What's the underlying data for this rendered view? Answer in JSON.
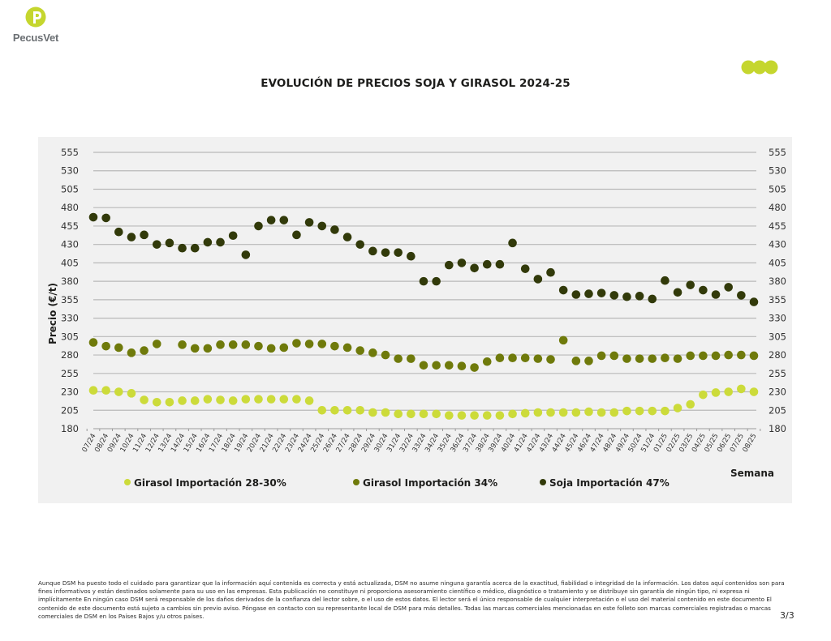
{
  "brand": {
    "name": "PecusVet",
    "logo_icon": "p-leaf-logo-icon",
    "decoration_icon": "three-dots-icon",
    "accent_color": "#c5d62e",
    "text_color": "#6b6f73"
  },
  "page": {
    "title": "EVOLUCIÓN DE PRECIOS SOJA Y GIRASOL 2024-25",
    "page_number": "3/3",
    "disclaimer": "Aunque DSM ha puesto todo el cuidado para garantizar que la información aquí contenida es correcta y está actualizada, DSM no asume ninguna garantía acerca de la exactitud, fiabilidad o integridad de la información. Los datos aquí contenidos son para fines informativos y están destinados solamente para su uso en las empresas. Esta publicación no constituye ni proporciona asesoramiento científico o médico, diagnóstico o tratamiento y se distribuye sin garantía de ningún tipo, ni expresa ni implícitamente En ningún caso DSM será responsable de los daños derivados de la confianza del lector sobre, o el uso de estos datos. El lector será el único responsable de cualquier interpretación o el uso del material contenido en este documento El contenido de este documento está sujeto a cambios sin previo aviso. Póngase en contacto con su representante local de DSM para más detalles. Todas las marcas comerciales mencionadas en este folleto son marcas comerciales registradas o marcas comerciales de DSM en los Países Bajos y/u otros países."
  },
  "chart_data": {
    "type": "scatter",
    "title": "EVOLUCIÓN DE PRECIOS SOJA Y GIRASOL 2024-25",
    "xlabel": "Semana",
    "ylabel": "Precio (€/t)",
    "ylim": [
      180,
      555
    ],
    "yticks": [
      180,
      205,
      230,
      255,
      280,
      305,
      330,
      355,
      380,
      405,
      430,
      455,
      480,
      505,
      530,
      555
    ],
    "secondary_y_axis": true,
    "grid": "horizontal",
    "legend_position": "bottom",
    "categories": [
      "07/24",
      "08/24",
      "09/24",
      "10/24",
      "11/24",
      "12/24",
      "13/24",
      "14/24",
      "15/24",
      "16/24",
      "17/24",
      "18/24",
      "19/24",
      "20/24",
      "21/24",
      "22/24",
      "23/24",
      "24/24",
      "25/24",
      "26/24",
      "27/24",
      "28/24",
      "29/24",
      "30/24",
      "31/24",
      "32/24",
      "33/24",
      "34/24",
      "35/24",
      "36/24",
      "37/24",
      "38/24",
      "39/24",
      "40/24",
      "41/24",
      "42/24",
      "43/24",
      "44/24",
      "45/24",
      "46/24",
      "47/24",
      "48/24",
      "49/24",
      "50/24",
      "51/24",
      "01/25",
      "02/25",
      "03/25",
      "04/25",
      "05/25",
      "06/25",
      "07/25",
      "08/25"
    ],
    "series": [
      {
        "name": "Girasol Importación 28-30%",
        "color": "#ccdb3a",
        "values": [
          232,
          232,
          230,
          228,
          219,
          216,
          216,
          218,
          218,
          220,
          219,
          218,
          220,
          220,
          220,
          220,
          220,
          218,
          205,
          205,
          205,
          205,
          202,
          202,
          200,
          200,
          200,
          200,
          198,
          198,
          198,
          198,
          198,
          200,
          201,
          202,
          202,
          202,
          202,
          203,
          202,
          202,
          204,
          204,
          204,
          204,
          208,
          213,
          226,
          229,
          230,
          234,
          230
        ]
      },
      {
        "name": "Girasol Importación 34%",
        "color": "#6f7a0b",
        "values": [
          297,
          292,
          290,
          283,
          286,
          295,
          null,
          294,
          289,
          289,
          294,
          294,
          294,
          292,
          289,
          290,
          296,
          295,
          295,
          292,
          290,
          286,
          283,
          280,
          275,
          275,
          266,
          266,
          266,
          265,
          263,
          271,
          276,
          276,
          276,
          275,
          274,
          300,
          272,
          272,
          279,
          279,
          275,
          275,
          275,
          276,
          275,
          279,
          279,
          279,
          280,
          280,
          279
        ]
      },
      {
        "name": "Soja Importación 47%",
        "color": "#323a0a",
        "values": [
          467,
          466,
          447,
          440,
          443,
          430,
          432,
          425,
          425,
          433,
          433,
          442,
          416,
          455,
          463,
          463,
          443,
          460,
          455,
          450,
          440,
          430,
          421,
          419,
          419,
          414,
          380,
          380,
          402,
          405,
          398,
          403,
          403,
          432,
          397,
          383,
          392,
          368,
          362,
          363,
          364,
          361,
          359,
          360,
          356,
          381,
          365,
          375,
          368,
          362,
          372,
          361,
          352
        ]
      }
    ]
  }
}
